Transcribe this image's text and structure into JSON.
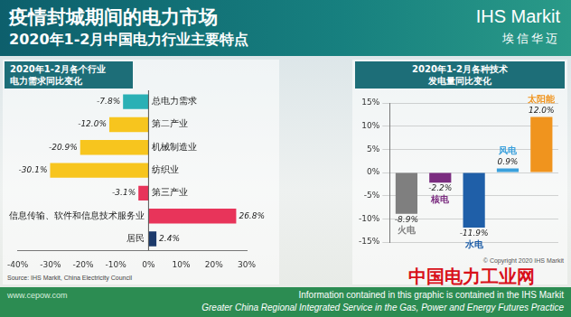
{
  "header": {
    "title": "疫情封城期间的电力市场",
    "subtitle": "2020年1-2月中国电力行业主要特点",
    "logo": "IHS Markit",
    "logo_cn": "埃信华迈"
  },
  "chart_data": [
    {
      "type": "bar",
      "orientation": "horizontal",
      "title": [
        "2020年1-2月各个行业",
        "电力需求同比变化"
      ],
      "categories": [
        "总电力需求",
        "第二产业",
        "机械制造业",
        "纺织业",
        "第三产业",
        "信息传输、软件和信息技术服务业",
        "居民"
      ],
      "values": [
        -7.8,
        -12.0,
        -20.9,
        -30.1,
        -3.1,
        26.8,
        2.4
      ],
      "value_labels": [
        "-7.8%",
        "-12.0%",
        "-20.9%",
        "-30.1%",
        "-3.1%",
        "26.8%",
        "2.4%"
      ],
      "colors": [
        "#2ab0b5",
        "#f7c51e",
        "#f7c51e",
        "#f7c51e",
        "#e8345a",
        "#e8345a",
        "#1c3a6b"
      ],
      "xlim": [
        -40,
        30
      ],
      "xticks": [
        {
          "value": -40,
          "label": "-40%"
        },
        {
          "value": -30,
          "label": "-30%"
        },
        {
          "value": -20,
          "label": "-20%"
        },
        {
          "value": -10,
          "label": "-10%"
        },
        {
          "value": 0,
          "label": "0%"
        },
        {
          "value": 10,
          "label": "10%"
        },
        {
          "value": 20,
          "label": "20%"
        },
        {
          "value": 30,
          "label": "30%"
        }
      ],
      "grid": false,
      "data_labels": true,
      "source": "Source: IHS Markit, China Electricity Council"
    },
    {
      "type": "bar",
      "title": [
        "2020年1-2月各种技术",
        "发电量同比变化"
      ],
      "categories": [
        "火电",
        "核电",
        "水电",
        "风电",
        "太阳能"
      ],
      "values": [
        -8.9,
        -2.2,
        -11.9,
        0.9,
        12.0
      ],
      "value_labels": [
        "-8.9%",
        "-2.2%",
        "-11.9%",
        "0.9%",
        "12.0%"
      ],
      "colors": [
        "#7f7f7f",
        "#7b2d80",
        "#1f5fa8",
        "#3aa0dc",
        "#f0941e"
      ],
      "ylim": [
        -15,
        15
      ],
      "yticks": [
        {
          "value": -15,
          "label": "-15%"
        },
        {
          "value": -10,
          "label": "-10%"
        },
        {
          "value": -5,
          "label": "-5%"
        },
        {
          "value": 0,
          "label": "0%"
        },
        {
          "value": 5,
          "label": "5%"
        },
        {
          "value": 10,
          "label": "10%"
        },
        {
          "value": 15,
          "label": "15%"
        }
      ],
      "grid": true,
      "data_labels": true,
      "copyright": "© Copyright 2020 IHS Markit"
    }
  ],
  "watermark": [
    "中国电力工业网",
    "www.cepow.com"
  ],
  "footer": [
    "Information contained in this graphic is contained in the IHS Markit",
    "Greater China Regional Integrated Service in the Gas, Power and Energy Futures Practice"
  ]
}
